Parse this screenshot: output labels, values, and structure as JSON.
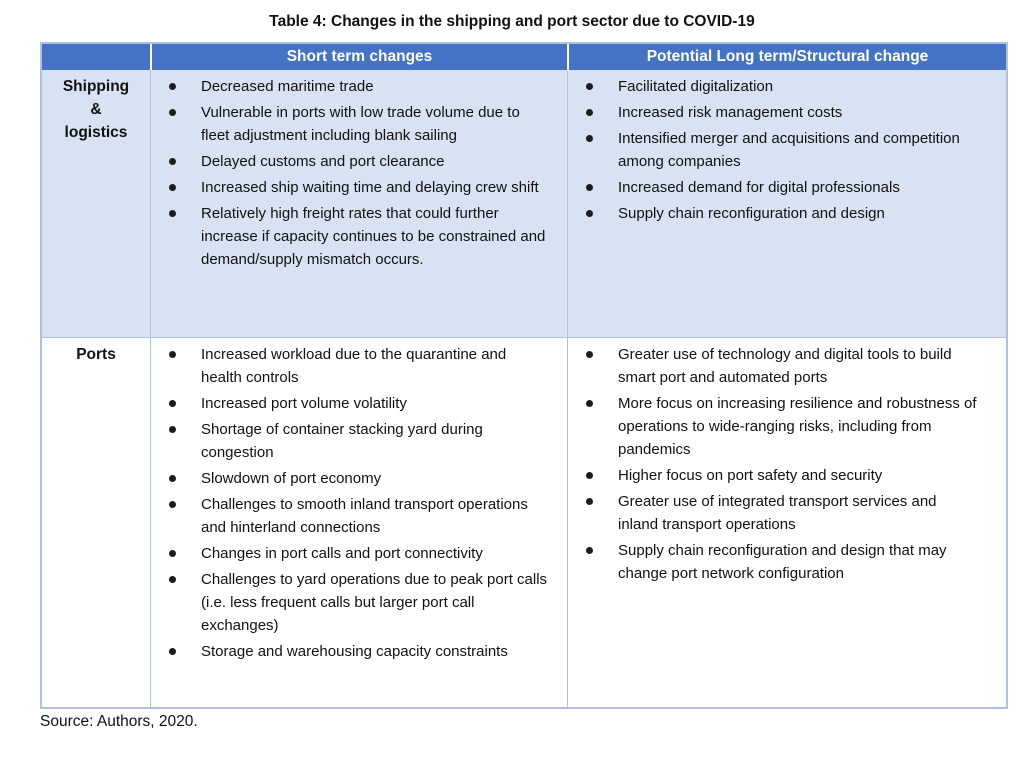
{
  "title": "Table 4: Changes in the shipping and port sector due to COVID-19",
  "source_note": "Source: Authors, 2020.",
  "colors": {
    "header_bg": "#4472C4",
    "header_text": "#FFFFFF",
    "row_shipping_bg": "#D9E2F3",
    "row_ports_bg": "#FFFFFF",
    "border": "#AFC1E1",
    "text": "#111111",
    "bullet": "#1C1C1C"
  },
  "table": {
    "header": {
      "row_label": "",
      "short_term": "Short term changes",
      "long_term": "Potential Long term/Structural change"
    },
    "rows": [
      {
        "label": "Shipping & logistics",
        "short_term": [
          "Decreased maritime trade",
          "Vulnerable in ports with low trade volume due to fleet adjustment including blank sailing",
          "Delayed customs and port clearance",
          "Increased ship waiting time and delaying crew shift",
          "Relatively high freight rates that could further increase if capacity continues to be constrained and demand/supply mismatch occurs."
        ],
        "long_term": [
          "Facilitated digitalization",
          "Increased risk management costs",
          "Intensified merger and acquisitions and competition among companies",
          "Increased demand for digital professionals",
          "Supply chain reconfiguration and design"
        ]
      },
      {
        "label": "Ports",
        "short_term": [
          "Increased workload due to the quarantine and health controls",
          "Increased port volume volatility",
          "Shortage of container stacking yard during congestion",
          "Slowdown of port economy",
          "Challenges to smooth inland transport operations and hinterland connections",
          "Changes in port calls and port connectivity",
          "Challenges to yard operations due to peak port calls (i.e. less frequent calls but larger port call exchanges)",
          "Storage and warehousing capacity constraints"
        ],
        "long_term": [
          "Greater use of technology and digital tools to build smart port and automated ports",
          "More focus on increasing resilience and robustness of operations to wide-ranging risks, including from pandemics",
          "Higher focus on port safety and security",
          "Greater use of integrated transport services and inland transport operations",
          "Supply chain reconfiguration and design that may change port network configuration"
        ]
      }
    ]
  }
}
